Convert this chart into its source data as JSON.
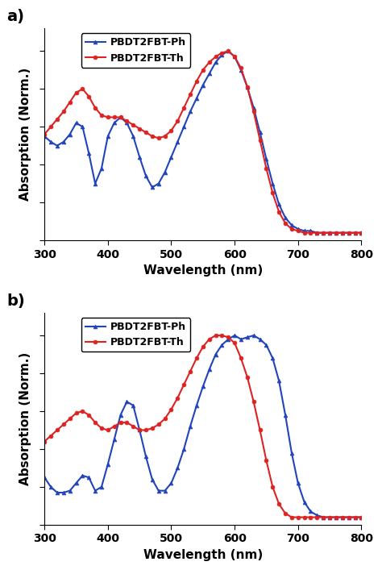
{
  "panel_a": {
    "blue_x": [
      300,
      310,
      320,
      330,
      340,
      350,
      360,
      370,
      380,
      390,
      400,
      410,
      420,
      430,
      440,
      450,
      460,
      470,
      480,
      490,
      500,
      510,
      520,
      530,
      540,
      550,
      560,
      570,
      580,
      590,
      600,
      610,
      620,
      630,
      640,
      650,
      660,
      670,
      680,
      690,
      700,
      710,
      720,
      730,
      740,
      750,
      760,
      770,
      780,
      790,
      800
    ],
    "blue_y": [
      0.55,
      0.52,
      0.5,
      0.52,
      0.56,
      0.62,
      0.6,
      0.46,
      0.3,
      0.38,
      0.55,
      0.62,
      0.65,
      0.62,
      0.55,
      0.44,
      0.34,
      0.28,
      0.3,
      0.36,
      0.44,
      0.52,
      0.6,
      0.68,
      0.75,
      0.82,
      0.88,
      0.94,
      0.98,
      1.0,
      0.97,
      0.9,
      0.81,
      0.7,
      0.57,
      0.43,
      0.3,
      0.19,
      0.12,
      0.08,
      0.06,
      0.05,
      0.05,
      0.04,
      0.04,
      0.04,
      0.04,
      0.04,
      0.04,
      0.04,
      0.04
    ],
    "red_x": [
      300,
      310,
      320,
      330,
      340,
      350,
      360,
      370,
      380,
      390,
      400,
      410,
      420,
      430,
      440,
      450,
      460,
      470,
      480,
      490,
      500,
      510,
      520,
      530,
      540,
      550,
      560,
      570,
      580,
      590,
      600,
      610,
      620,
      630,
      640,
      650,
      660,
      670,
      680,
      690,
      700,
      710,
      720,
      730,
      740,
      750,
      760,
      770,
      780,
      790,
      800
    ],
    "red_y": [
      0.56,
      0.6,
      0.64,
      0.68,
      0.73,
      0.78,
      0.8,
      0.76,
      0.7,
      0.66,
      0.65,
      0.65,
      0.65,
      0.63,
      0.61,
      0.59,
      0.57,
      0.55,
      0.54,
      0.55,
      0.58,
      0.63,
      0.7,
      0.77,
      0.84,
      0.9,
      0.94,
      0.97,
      0.99,
      1.0,
      0.97,
      0.91,
      0.81,
      0.68,
      0.53,
      0.38,
      0.25,
      0.15,
      0.09,
      0.06,
      0.05,
      0.04,
      0.04,
      0.04,
      0.04,
      0.04,
      0.04,
      0.04,
      0.04,
      0.04,
      0.04
    ]
  },
  "panel_b": {
    "blue_x": [
      300,
      310,
      320,
      330,
      340,
      350,
      360,
      370,
      380,
      390,
      400,
      410,
      420,
      430,
      440,
      450,
      460,
      470,
      480,
      490,
      500,
      510,
      520,
      530,
      540,
      550,
      560,
      570,
      580,
      590,
      600,
      610,
      620,
      630,
      640,
      650,
      660,
      670,
      680,
      690,
      700,
      710,
      720,
      730,
      740,
      750,
      760,
      770,
      780,
      790,
      800
    ],
    "blue_y": [
      0.25,
      0.2,
      0.17,
      0.17,
      0.18,
      0.22,
      0.26,
      0.25,
      0.18,
      0.2,
      0.32,
      0.45,
      0.58,
      0.65,
      0.63,
      0.5,
      0.36,
      0.24,
      0.18,
      0.18,
      0.22,
      0.3,
      0.4,
      0.52,
      0.63,
      0.73,
      0.82,
      0.9,
      0.95,
      0.98,
      1.0,
      0.98,
      0.99,
      1.0,
      0.98,
      0.95,
      0.88,
      0.76,
      0.58,
      0.38,
      0.22,
      0.12,
      0.07,
      0.05,
      0.04,
      0.04,
      0.04,
      0.04,
      0.04,
      0.04,
      0.04
    ],
    "red_x": [
      300,
      310,
      320,
      330,
      340,
      350,
      360,
      370,
      380,
      390,
      400,
      410,
      420,
      430,
      440,
      450,
      460,
      470,
      480,
      490,
      500,
      510,
      520,
      530,
      540,
      550,
      560,
      570,
      580,
      590,
      600,
      610,
      620,
      630,
      640,
      650,
      660,
      670,
      680,
      690,
      700,
      710,
      720,
      730,
      740,
      750,
      760,
      770,
      780,
      790,
      800
    ],
    "red_y": [
      0.44,
      0.47,
      0.5,
      0.53,
      0.56,
      0.59,
      0.6,
      0.58,
      0.54,
      0.51,
      0.5,
      0.52,
      0.54,
      0.54,
      0.52,
      0.5,
      0.5,
      0.51,
      0.53,
      0.56,
      0.61,
      0.67,
      0.74,
      0.81,
      0.88,
      0.94,
      0.98,
      1.0,
      1.0,
      0.99,
      0.96,
      0.88,
      0.78,
      0.65,
      0.5,
      0.34,
      0.2,
      0.11,
      0.06,
      0.04,
      0.04,
      0.04,
      0.04,
      0.04,
      0.04,
      0.04,
      0.04,
      0.04,
      0.04,
      0.04,
      0.04
    ]
  },
  "blue_color": "#2244bb",
  "red_color": "#dd2222",
  "blue_label_prefix": "PBDT2FBT-",
  "blue_label_suffix": "Ph",
  "red_label_prefix": "PBDT2FBT-",
  "red_label_suffix": "Th",
  "xlabel": "Wavelength (nm)",
  "ylabel": "Absorption (Norm.)",
  "xlim": [
    300,
    800
  ],
  "ylim_a": [
    0.0,
    1.12
  ],
  "ylim_b": [
    0.0,
    1.12
  ],
  "xticks": [
    300,
    400,
    500,
    600,
    700,
    800
  ],
  "panel_labels": [
    "a)",
    "b)"
  ],
  "marker_blue": "^",
  "marker_red": "o",
  "marker_size": 3.5,
  "marker_every": 1,
  "line_width": 1.5,
  "tick_fontsize": 10,
  "label_fontsize": 11,
  "legend_fontsize": 9,
  "panel_label_fontsize": 14
}
